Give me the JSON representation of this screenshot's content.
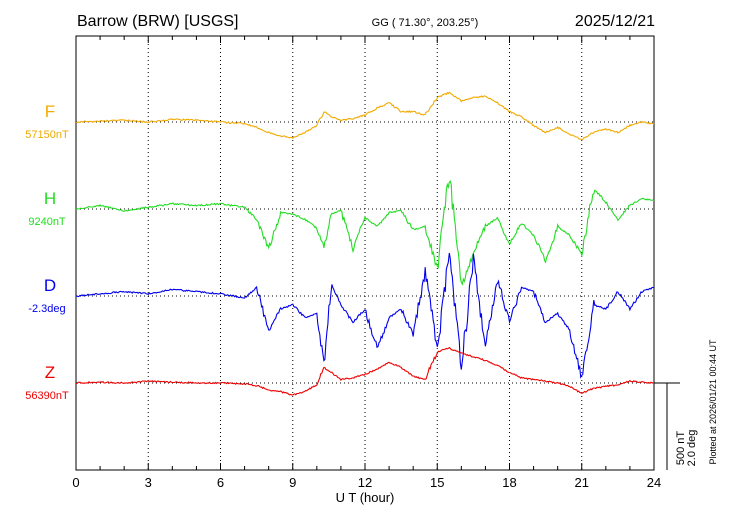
{
  "header": {
    "station": "Barrow (BRW)  [USGS]",
    "coords": "GG ( 71.30°, 203.25°)",
    "date": "2025/12/21"
  },
  "footer": {
    "xlabel": "U T (hour)",
    "plotted": "Plotted at 2026/01/21 00:44 UT",
    "scale_nt": "500 nT",
    "scale_deg": "2.0 deg"
  },
  "colors": {
    "F": "#f2aa00",
    "H": "#22dd22",
    "D": "#0000ee",
    "Z": "#ee0000"
  },
  "chart_data": {
    "type": "line",
    "title": "Barrow (BRW)  [USGS]",
    "xlabel": "U T (hour)",
    "ylabel": "",
    "xlim": [
      0,
      24
    ],
    "x_ticks": [
      0,
      3,
      6,
      9,
      12,
      15,
      18,
      21,
      24
    ],
    "grid": true,
    "scale": {
      "nT": 500,
      "deg": 2.0
    },
    "series": [
      {
        "name": "F",
        "baseline_label": "57150nT",
        "baseline": 57150,
        "unit": "nT",
        "x": [
          0,
          1,
          2,
          3,
          4,
          5,
          6,
          7,
          7.5,
          8,
          8.5,
          9,
          9.5,
          10,
          10.3,
          10.6,
          11,
          11.5,
          12,
          12.5,
          13,
          13.5,
          14,
          14.5,
          15,
          15.5,
          16,
          16.5,
          17,
          17.5,
          18,
          18.5,
          19,
          19.5,
          20,
          20.5,
          21,
          21.5,
          22,
          22.5,
          23,
          23.5,
          24
        ],
        "y": [
          0,
          5,
          10,
          0,
          15,
          10,
          0,
          -10,
          -30,
          -60,
          -80,
          -90,
          -60,
          -20,
          60,
          30,
          10,
          20,
          40,
          80,
          110,
          60,
          60,
          40,
          140,
          170,
          120,
          140,
          150,
          110,
          60,
          30,
          -20,
          -60,
          -30,
          -70,
          -100,
          -60,
          -40,
          -60,
          -20,
          0,
          -10
        ]
      },
      {
        "name": "H",
        "baseline_label": "9240nT",
        "baseline": 9240,
        "unit": "nT",
        "x": [
          0,
          1,
          2,
          3,
          4,
          5,
          6,
          7,
          7.5,
          8,
          8.5,
          9,
          9.5,
          10,
          10.3,
          10.6,
          11,
          11.5,
          12,
          12.5,
          13,
          13.5,
          14,
          14.5,
          15,
          15.5,
          16,
          16.5,
          17,
          17.5,
          18,
          18.5,
          19,
          19.5,
          20,
          20.5,
          21,
          21.5,
          22,
          22.5,
          23,
          23.5,
          24
        ],
        "y": [
          0,
          20,
          -10,
          10,
          30,
          20,
          30,
          10,
          -60,
          -230,
          -20,
          -30,
          -60,
          -110,
          -220,
          -30,
          -10,
          -230,
          -50,
          -100,
          -20,
          -10,
          -120,
          -100,
          -350,
          200,
          -450,
          -250,
          -100,
          -50,
          -200,
          -80,
          -150,
          -300,
          -100,
          -150,
          -260,
          120,
          40,
          -60,
          20,
          60,
          50
        ]
      },
      {
        "name": "D",
        "baseline_label": "-2.3deg",
        "baseline": -2.3,
        "unit": "deg",
        "x": [
          0,
          1,
          2,
          3,
          4,
          5,
          6,
          7,
          7.5,
          8,
          8.5,
          9,
          9.5,
          10,
          10.3,
          10.6,
          11,
          11.5,
          12,
          12.5,
          13,
          13.5,
          14,
          14.5,
          15,
          15.5,
          16,
          16.5,
          17,
          17.5,
          18,
          18.5,
          19,
          19.5,
          20,
          20.5,
          21,
          21.5,
          22,
          22.5,
          23,
          23.5,
          24
        ],
        "y": [
          0,
          0.05,
          0.1,
          0.05,
          0.15,
          0.1,
          0.05,
          -0.05,
          0.2,
          -0.8,
          -0.3,
          -0.2,
          -0.5,
          -0.4,
          -1.6,
          0.3,
          -0.2,
          -0.6,
          -0.3,
          -1.2,
          -0.5,
          -0.3,
          -0.9,
          0.6,
          -1.2,
          1.0,
          -1.6,
          0.8,
          -1.2,
          0.4,
          -0.6,
          0.2,
          0.1,
          -0.6,
          -0.4,
          -0.8,
          -1.9,
          -0.2,
          -0.3,
          0.1,
          -0.3,
          0.1,
          0.2
        ]
      },
      {
        "name": "Z",
        "baseline_label": "56390nT",
        "baseline": 56390,
        "unit": "nT",
        "x": [
          0,
          1,
          2,
          3,
          4,
          5,
          6,
          7,
          7.5,
          8,
          8.5,
          9,
          9.5,
          10,
          10.3,
          10.6,
          11,
          11.5,
          12,
          12.5,
          13,
          13.5,
          14,
          14.5,
          15,
          15.5,
          16,
          16.5,
          17,
          17.5,
          18,
          18.5,
          19,
          19.5,
          20,
          20.5,
          21,
          21.5,
          22,
          22.5,
          23,
          23.5,
          24
        ],
        "y": [
          0,
          5,
          0,
          10,
          5,
          0,
          0,
          -5,
          -15,
          -40,
          -50,
          -70,
          -50,
          -10,
          90,
          60,
          20,
          30,
          50,
          80,
          120,
          90,
          40,
          20,
          180,
          200,
          170,
          150,
          130,
          100,
          60,
          30,
          20,
          10,
          0,
          -20,
          -60,
          -30,
          -20,
          -10,
          10,
          5,
          0
        ]
      }
    ]
  }
}
